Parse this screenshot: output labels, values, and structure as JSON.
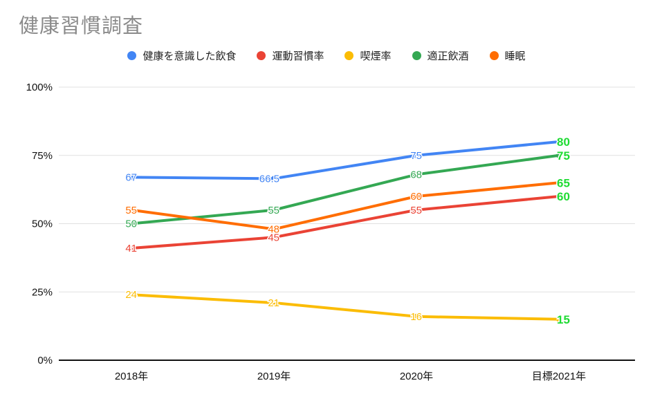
{
  "chart_data": {
    "type": "line",
    "title": "健康習慣調査",
    "categories": [
      "2018年",
      "2019年",
      "2020年",
      "目標2021年"
    ],
    "series": [
      {
        "name": "健康を意識した飲食",
        "color": "#4285F4",
        "values": [
          67,
          66.5,
          75,
          80
        ],
        "labels": [
          "67",
          "66.5",
          "75",
          "80"
        ]
      },
      {
        "name": "運動習慣率",
        "color": "#EA4335",
        "values": [
          41,
          45,
          55,
          60
        ],
        "labels": [
          "41",
          "45",
          "55",
          "60"
        ]
      },
      {
        "name": "喫煙率",
        "color": "#FBBC04",
        "values": [
          24,
          21,
          16,
          15
        ],
        "labels": [
          "24",
          "21",
          "16",
          "15"
        ]
      },
      {
        "name": "適正飲酒",
        "color": "#34A853",
        "values": [
          50,
          55,
          68,
          75
        ],
        "labels": [
          "50",
          "55",
          "68",
          "75"
        ]
      },
      {
        "name": "睡眠",
        "color": "#FF6D01",
        "values": [
          55,
          48,
          60,
          65
        ],
        "labels": [
          "55",
          "48",
          "60",
          "65"
        ]
      }
    ],
    "y_axis": {
      "min": 0,
      "max": 100,
      "ticks": [
        {
          "label": "0%",
          "value": 0
        },
        {
          "label": "25%",
          "value": 25
        },
        {
          "label": "50%",
          "value": 50
        },
        {
          "label": "75%",
          "value": 75
        },
        {
          "label": "100%",
          "value": 100
        }
      ]
    },
    "grid": true,
    "legend_position": "top",
    "data_labels": true,
    "final_column_label_color": "#1FDB33",
    "axis_color": "#111111",
    "gridline_color": "#E0E0E0"
  }
}
